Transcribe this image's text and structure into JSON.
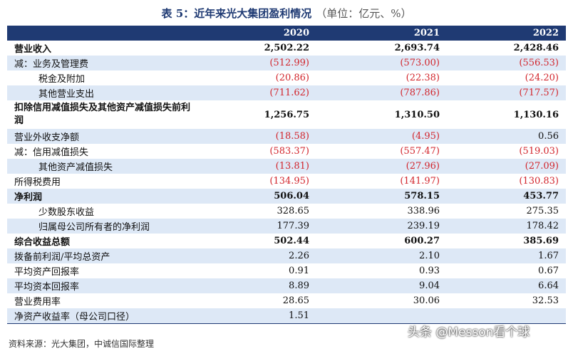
{
  "title": {
    "main": "表 5：近年来光大集团盈利情况",
    "unit": "（单位：亿元、%）"
  },
  "columns": [
    "",
    "2020",
    "2021",
    "2022"
  ],
  "rows": [
    {
      "label": "营业收入",
      "values": [
        "2,502.22",
        "2,693.74",
        "2,428.46"
      ]
    },
    {
      "label": "减：业务及管理费",
      "values": [
        "(512.99)",
        "(573.00)",
        "(556.53)"
      ]
    },
    {
      "label": "税金及附加",
      "values": [
        "(20.86)",
        "(22.38)",
        "(24.20)"
      ]
    },
    {
      "label": "其他营业支出",
      "values": [
        "(711.62)",
        "(787.86)",
        "(717.57)"
      ]
    },
    {
      "label": "扣除信用减值损失及其他资产减值损失前利润",
      "values": [
        "1,256.75",
        "1,310.50",
        "1,130.16"
      ]
    },
    {
      "label": "营业外收支净额",
      "values": [
        "(18.58)",
        "(4.95)",
        "0.56"
      ]
    },
    {
      "label": "减：信用减值损失",
      "values": [
        "(583.37)",
        "(557.47)",
        "(519.03)"
      ]
    },
    {
      "label": "其他资产减值损失",
      "values": [
        "(13.81)",
        "(27.96)",
        "(27.09)"
      ]
    },
    {
      "label": "所得税费用",
      "values": [
        "(134.95)",
        "(141.97)",
        "(130.83)"
      ]
    },
    {
      "label": "净利润",
      "values": [
        "506.04",
        "578.15",
        "453.77"
      ]
    },
    {
      "label": "少数股东收益",
      "values": [
        "328.65",
        "338.96",
        "275.35"
      ]
    },
    {
      "label": "归属母公司所有者的净利润",
      "values": [
        "177.39",
        "239.19",
        "178.42"
      ]
    },
    {
      "label": "综合收益总额",
      "values": [
        "502.44",
        "600.27",
        "385.69"
      ]
    },
    {
      "label": "拨备前利润/平均总资产",
      "values": [
        "2.26",
        "2.10",
        "1.67"
      ]
    },
    {
      "label": "平均资产回报率",
      "values": [
        "0.91",
        "0.93",
        "0.67"
      ]
    },
    {
      "label": "平均资本回报率",
      "values": [
        "8.89",
        "9.04",
        "6.64"
      ]
    },
    {
      "label": "营业费用率",
      "values": [
        "28.65",
        "30.06",
        "32.53"
      ]
    },
    {
      "label": "净资产收益率（母公司口径）",
      "values": [
        "1.51",
        "",
        ""
      ]
    }
  ],
  "source": "资料来源：光大集团，中诚信国际整理",
  "watermark": "头条 @Messon看个球",
  "colors": {
    "header_bg": "#1f3a73",
    "band_bg": "#dde8f6",
    "negative": "#d2242b"
  }
}
